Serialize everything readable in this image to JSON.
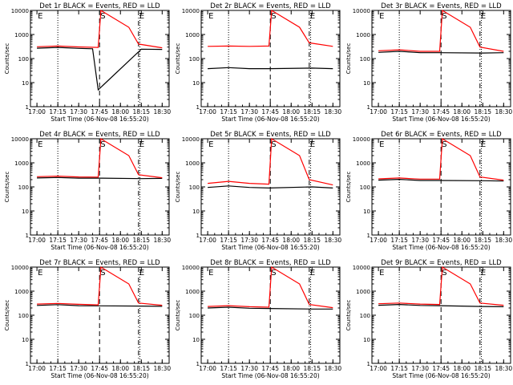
{
  "chart_data": [
    {
      "type": "line",
      "title": "Det 1r BLACK = Events, RED = LLD",
      "ylabel": "Counts/sec",
      "xlabel": "Start Time (06-Nov-08 16:55:20)",
      "ylim": [
        1,
        10000
      ],
      "y_scale": "log",
      "x_ticks": [
        "17:00",
        "17:15",
        "17:30",
        "17:45",
        "18:00",
        "18:15",
        "18:30"
      ],
      "markers": [
        "E",
        "S",
        "E"
      ],
      "series": [
        {
          "color": "#000000",
          "values": [
            {
              "t": "17:00",
              "y": 270
            },
            {
              "t": "17:15",
              "y": 290
            },
            {
              "t": "17:30",
              "y": 265
            },
            {
              "t": "17:40",
              "y": 255
            },
            {
              "t": "17:44",
              "y": 5
            },
            {
              "t": "18:15",
              "y": 245
            },
            {
              "t": "18:30",
              "y": 240
            }
          ]
        },
        {
          "color": "#ff0000",
          "values": [
            {
              "t": "17:00",
              "y": 310
            },
            {
              "t": "17:15",
              "y": 330
            },
            {
              "t": "17:30",
              "y": 305
            },
            {
              "t": "17:44",
              "y": 290
            },
            {
              "t": "17:46",
              "y": 10000
            },
            {
              "t": "18:06",
              "y": 2000
            },
            {
              "t": "18:13",
              "y": 400
            },
            {
              "t": "18:30",
              "y": 280
            }
          ]
        }
      ]
    },
    {
      "type": "line",
      "title": "Det 2r BLACK = Events, RED = LLD",
      "ylabel": "Counts/sec",
      "xlabel": "Start Time (06-Nov-08 16:55:20)",
      "ylim": [
        1,
        10000
      ],
      "y_scale": "log",
      "x_ticks": [
        "17:00",
        "17:15",
        "17:30",
        "17:45",
        "18:00",
        "18:15",
        "18:30"
      ],
      "markers": [
        "E",
        "S",
        "E"
      ],
      "series": [
        {
          "color": "#000000",
          "values": [
            {
              "t": "17:00",
              "y": 38
            },
            {
              "t": "17:15",
              "y": 42
            },
            {
              "t": "17:30",
              "y": 38
            },
            {
              "t": "17:44",
              "y": 38
            },
            {
              "t": "18:15",
              "y": 40
            },
            {
              "t": "18:30",
              "y": 38
            }
          ]
        },
        {
          "color": "#ff0000",
          "values": [
            {
              "t": "17:00",
              "y": 320
            },
            {
              "t": "17:15",
              "y": 330
            },
            {
              "t": "17:30",
              "y": 320
            },
            {
              "t": "17:44",
              "y": 330
            },
            {
              "t": "17:46",
              "y": 10000
            },
            {
              "t": "18:06",
              "y": 2000
            },
            {
              "t": "18:13",
              "y": 450
            },
            {
              "t": "18:30",
              "y": 320
            }
          ]
        }
      ]
    },
    {
      "type": "line",
      "title": "Det 3r BLACK = Events, RED = LLD",
      "ylabel": "Counts/sec",
      "xlabel": "Start Time (06-Nov-08 16:55:20)",
      "ylim": [
        1,
        10000
      ],
      "y_scale": "log",
      "x_ticks": [
        "17:00",
        "17:15",
        "17:30",
        "17:45",
        "18:00",
        "18:15",
        "18:30"
      ],
      "markers": [
        "E",
        "S",
        "E"
      ],
      "series": [
        {
          "color": "#000000",
          "values": [
            {
              "t": "17:00",
              "y": 180
            },
            {
              "t": "17:15",
              "y": 200
            },
            {
              "t": "17:30",
              "y": 175
            },
            {
              "t": "17:44",
              "y": 175
            },
            {
              "t": "18:15",
              "y": 170
            },
            {
              "t": "18:30",
              "y": 175
            }
          ]
        },
        {
          "color": "#ff0000",
          "values": [
            {
              "t": "17:00",
              "y": 210
            },
            {
              "t": "17:15",
              "y": 230
            },
            {
              "t": "17:30",
              "y": 200
            },
            {
              "t": "17:44",
              "y": 200
            },
            {
              "t": "17:46",
              "y": 10000
            },
            {
              "t": "18:06",
              "y": 2000
            },
            {
              "t": "18:13",
              "y": 300
            },
            {
              "t": "18:30",
              "y": 200
            }
          ]
        }
      ]
    },
    {
      "type": "line",
      "title": "Det 4r BLACK = Events, RED = LLD",
      "ylabel": "Counts/sec",
      "xlabel": "Start Time (06-Nov-08 16:55:20)",
      "ylim": [
        1,
        10000
      ],
      "y_scale": "log",
      "x_ticks": [
        "17:00",
        "17:15",
        "17:30",
        "17:45",
        "18:00",
        "18:15",
        "18:30"
      ],
      "markers": [
        "E",
        "S",
        "E"
      ],
      "series": [
        {
          "color": "#000000",
          "values": [
            {
              "t": "17:00",
              "y": 235
            },
            {
              "t": "17:15",
              "y": 245
            },
            {
              "t": "17:30",
              "y": 230
            },
            {
              "t": "17:44",
              "y": 230
            },
            {
              "t": "18:15",
              "y": 220
            },
            {
              "t": "18:30",
              "y": 225
            }
          ]
        },
        {
          "color": "#ff0000",
          "values": [
            {
              "t": "17:00",
              "y": 265
            },
            {
              "t": "17:15",
              "y": 280
            },
            {
              "t": "17:30",
              "y": 260
            },
            {
              "t": "17:44",
              "y": 255
            },
            {
              "t": "17:46",
              "y": 10000
            },
            {
              "t": "18:06",
              "y": 2000
            },
            {
              "t": "18:13",
              "y": 320
            },
            {
              "t": "18:30",
              "y": 240
            }
          ]
        }
      ]
    },
    {
      "type": "line",
      "title": "Det 5r BLACK = Events, RED = LLD",
      "ylabel": "Counts/sec",
      "xlabel": "Start Time (06-Nov-08 16:55:20)",
      "ylim": [
        1,
        10000
      ],
      "y_scale": "log",
      "x_ticks": [
        "17:00",
        "17:15",
        "17:30",
        "17:45",
        "18:00",
        "18:15",
        "18:30"
      ],
      "markers": [
        "E",
        "S",
        "E"
      ],
      "series": [
        {
          "color": "#000000",
          "values": [
            {
              "t": "17:00",
              "y": 95
            },
            {
              "t": "17:15",
              "y": 110
            },
            {
              "t": "17:30",
              "y": 95
            },
            {
              "t": "17:44",
              "y": 90
            },
            {
              "t": "18:15",
              "y": 100
            },
            {
              "t": "18:30",
              "y": 90
            }
          ]
        },
        {
          "color": "#ff0000",
          "values": [
            {
              "t": "17:00",
              "y": 140
            },
            {
              "t": "17:15",
              "y": 170
            },
            {
              "t": "17:30",
              "y": 140
            },
            {
              "t": "17:44",
              "y": 130
            },
            {
              "t": "17:46",
              "y": 10000
            },
            {
              "t": "18:06",
              "y": 2000
            },
            {
              "t": "18:13",
              "y": 200
            },
            {
              "t": "18:30",
              "y": 120
            }
          ]
        }
      ]
    },
    {
      "type": "line",
      "title": "Det 6r BLACK = Events, RED = LLD",
      "ylabel": "Counts/sec",
      "xlabel": "Start Time (06-Nov-08 16:55:20)",
      "ylim": [
        1,
        10000
      ],
      "y_scale": "log",
      "x_ticks": [
        "17:00",
        "17:15",
        "17:30",
        "17:45",
        "18:00",
        "18:15",
        "18:30"
      ],
      "markers": [
        "E",
        "S",
        "E"
      ],
      "series": [
        {
          "color": "#000000",
          "values": [
            {
              "t": "17:00",
              "y": 190
            },
            {
              "t": "17:15",
              "y": 205
            },
            {
              "t": "17:30",
              "y": 185
            },
            {
              "t": "17:44",
              "y": 185
            },
            {
              "t": "18:15",
              "y": 180
            },
            {
              "t": "18:30",
              "y": 175
            }
          ]
        },
        {
          "color": "#ff0000",
          "values": [
            {
              "t": "17:00",
              "y": 215
            },
            {
              "t": "17:15",
              "y": 235
            },
            {
              "t": "17:30",
              "y": 210
            },
            {
              "t": "17:44",
              "y": 210
            },
            {
              "t": "17:46",
              "y": 10000
            },
            {
              "t": "18:06",
              "y": 2000
            },
            {
              "t": "18:13",
              "y": 260
            },
            {
              "t": "18:30",
              "y": 190
            }
          ]
        }
      ]
    },
    {
      "type": "line",
      "title": "Det 7r BLACK = Events, RED = LLD",
      "ylabel": "Counts/sec",
      "xlabel": "Start Time (06-Nov-08 16:55:20)",
      "ylim": [
        1,
        10000
      ],
      "y_scale": "log",
      "x_ticks": [
        "17:00",
        "17:15",
        "17:30",
        "17:45",
        "18:00",
        "18:15",
        "18:30"
      ],
      "markers": [
        "E",
        "S",
        "E"
      ],
      "series": [
        {
          "color": "#000000",
          "values": [
            {
              "t": "17:00",
              "y": 255
            },
            {
              "t": "17:15",
              "y": 275
            },
            {
              "t": "17:30",
              "y": 250
            },
            {
              "t": "17:44",
              "y": 245
            },
            {
              "t": "18:15",
              "y": 240
            },
            {
              "t": "18:30",
              "y": 235
            }
          ]
        },
        {
          "color": "#ff0000",
          "values": [
            {
              "t": "17:00",
              "y": 290
            },
            {
              "t": "17:15",
              "y": 310
            },
            {
              "t": "17:30",
              "y": 285
            },
            {
              "t": "17:44",
              "y": 270
            },
            {
              "t": "17:46",
              "y": 10000
            },
            {
              "t": "18:06",
              "y": 2000
            },
            {
              "t": "18:13",
              "y": 320
            },
            {
              "t": "18:30",
              "y": 260
            }
          ]
        }
      ]
    },
    {
      "type": "line",
      "title": "Det 8r BLACK = Events, RED = LLD",
      "ylabel": "Counts/sec",
      "xlabel": "Start Time (06-Nov-08 16:55:20)",
      "ylim": [
        1,
        10000
      ],
      "y_scale": "log",
      "x_ticks": [
        "17:00",
        "17:15",
        "17:30",
        "17:45",
        "18:00",
        "18:15",
        "18:30"
      ],
      "markers": [
        "E",
        "S",
        "E"
      ],
      "series": [
        {
          "color": "#000000",
          "values": [
            {
              "t": "17:00",
              "y": 200
            },
            {
              "t": "17:15",
              "y": 215
            },
            {
              "t": "17:30",
              "y": 195
            },
            {
              "t": "17:44",
              "y": 190
            },
            {
              "t": "18:15",
              "y": 180
            },
            {
              "t": "18:30",
              "y": 180
            }
          ]
        },
        {
          "color": "#ff0000",
          "values": [
            {
              "t": "17:00",
              "y": 230
            },
            {
              "t": "17:15",
              "y": 250
            },
            {
              "t": "17:30",
              "y": 225
            },
            {
              "t": "17:44",
              "y": 215
            },
            {
              "t": "17:46",
              "y": 10000
            },
            {
              "t": "18:06",
              "y": 2000
            },
            {
              "t": "18:13",
              "y": 280
            },
            {
              "t": "18:30",
              "y": 205
            }
          ]
        }
      ]
    },
    {
      "type": "line",
      "title": "Det 9r BLACK = Events, RED = LLD",
      "ylabel": "Counts/sec",
      "xlabel": "Start Time (06-Nov-08 16:55:20)",
      "ylim": [
        1,
        10000
      ],
      "y_scale": "log",
      "x_ticks": [
        "17:00",
        "17:15",
        "17:30",
        "17:45",
        "18:00",
        "18:15",
        "18:30"
      ],
      "markers": [
        "E",
        "S",
        "E"
      ],
      "series": [
        {
          "color": "#000000",
          "values": [
            {
              "t": "17:00",
              "y": 260
            },
            {
              "t": "17:15",
              "y": 280
            },
            {
              "t": "17:30",
              "y": 255
            },
            {
              "t": "17:44",
              "y": 250
            },
            {
              "t": "18:15",
              "y": 230
            },
            {
              "t": "18:30",
              "y": 225
            }
          ]
        },
        {
          "color": "#ff0000",
          "values": [
            {
              "t": "17:00",
              "y": 300
            },
            {
              "t": "17:15",
              "y": 320
            },
            {
              "t": "17:30",
              "y": 290
            },
            {
              "t": "17:44",
              "y": 280
            },
            {
              "t": "17:46",
              "y": 10000
            },
            {
              "t": "18:06",
              "y": 2000
            },
            {
              "t": "18:13",
              "y": 320
            },
            {
              "t": "18:30",
              "y": 260
            }
          ]
        }
      ]
    }
  ],
  "y_tick_labels": [
    "1",
    "10",
    "100",
    "1000",
    "10000"
  ]
}
